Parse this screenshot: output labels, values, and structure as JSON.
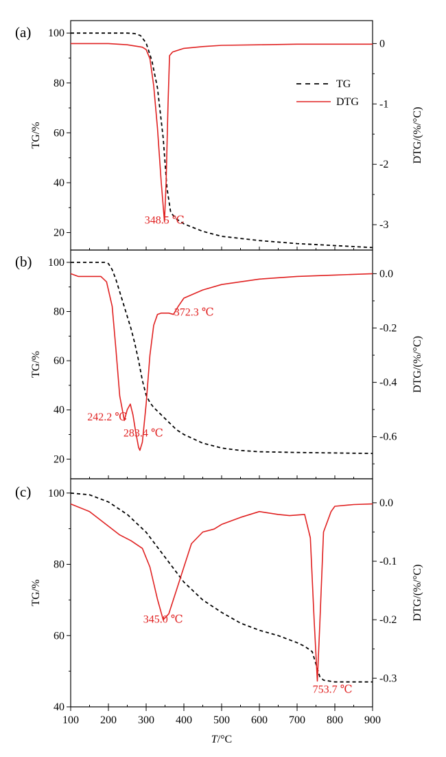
{
  "chart_data": [
    {
      "type": "line",
      "panel": "(a)",
      "ylabel": "TG/%",
      "y2label": "DTG/(%/°C)",
      "xlim": [
        100,
        900
      ],
      "ylim": [
        13,
        105
      ],
      "y2lim": [
        -3.42,
        0.38
      ],
      "yticks": [
        20,
        40,
        60,
        80,
        100
      ],
      "y2ticks": [
        -3,
        -2,
        -1,
        0
      ],
      "y2ticklabels": [
        "-3",
        "-2",
        "-1",
        "0"
      ],
      "legend": {
        "position": "right",
        "entries": [
          {
            "name": "TG",
            "style": "dashed",
            "color": "#000000"
          },
          {
            "name": "DTG",
            "style": "solid",
            "color": "#e02020"
          }
        ]
      },
      "annotations": [
        {
          "text": "348.5 ℃",
          "x": 348.5,
          "y": -2.98
        }
      ],
      "series": [
        {
          "name": "TG",
          "axis": "left",
          "style": "dashed",
          "color": "#000000",
          "x": [
            100,
            200,
            250,
            270,
            285,
            300,
            315,
            330,
            345,
            355,
            365,
            380,
            400,
            450,
            500,
            600,
            700,
            800,
            900
          ],
          "y": [
            100,
            100,
            100,
            99.8,
            99,
            96,
            89,
            78,
            58,
            38,
            28,
            25.5,
            23.5,
            20.5,
            18.5,
            16.8,
            15.6,
            14.8,
            14
          ]
        },
        {
          "name": "DTG",
          "axis": "right",
          "style": "solid",
          "color": "#e02020",
          "x": [
            100,
            200,
            250,
            290,
            300,
            310,
            320,
            330,
            340,
            348.5,
            353,
            358,
            362,
            370,
            400,
            450,
            500,
            600,
            700,
            800,
            900
          ],
          "y": [
            0.0,
            0.0,
            -0.02,
            -0.06,
            -0.1,
            -0.25,
            -0.7,
            -1.4,
            -2.3,
            -2.95,
            -2.3,
            -1.0,
            -0.2,
            -0.14,
            -0.08,
            -0.05,
            -0.03,
            -0.02,
            -0.01,
            -0.01,
            -0.01
          ]
        }
      ]
    },
    {
      "type": "line",
      "panel": "(b)",
      "ylabel": "TG/%",
      "y2label": "DTG/(%/°C)",
      "xlim": [
        100,
        900
      ],
      "ylim": [
        12,
        105
      ],
      "y2lim": [
        -0.755,
        0.087
      ],
      "yticks": [
        20,
        40,
        60,
        80,
        100
      ],
      "y2ticks": [
        -0.6,
        -0.4,
        -0.2,
        0.0
      ],
      "y2ticklabels": [
        "-0.6",
        "-0.4",
        "-0.2",
        "0.0"
      ],
      "annotations": [
        {
          "text": "372.3 ℃",
          "x": 372.3,
          "y": -0.155
        },
        {
          "text": "242.2 ℃",
          "x": 242.2,
          "y": -0.54
        },
        {
          "text": "283.4 ℃",
          "x": 283.4,
          "y": -0.6
        }
      ],
      "series": [
        {
          "name": "TG",
          "axis": "left",
          "style": "dashed",
          "color": "#000000",
          "x": [
            100,
            150,
            190,
            200,
            210,
            220,
            230,
            240,
            250,
            260,
            270,
            280,
            290,
            300,
            310,
            320,
            340,
            360,
            380,
            400,
            450,
            500,
            550,
            600,
            700,
            800,
            900
          ],
          "y": [
            100,
            100,
            100,
            99.5,
            97,
            93,
            88,
            83,
            78,
            73,
            67,
            60,
            52,
            46,
            43,
            41,
            38,
            35,
            32,
            30,
            26.5,
            24.5,
            23.5,
            23,
            22.7,
            22.5,
            22.3
          ]
        },
        {
          "name": "DTG",
          "axis": "right",
          "style": "solid",
          "color": "#e02020",
          "x": [
            100,
            120,
            180,
            195,
            210,
            220,
            230,
            242.2,
            250,
            258,
            265,
            272,
            280,
            283.4,
            290,
            300,
            310,
            320,
            330,
            340,
            360,
            372.3,
            385,
            400,
            450,
            500,
            600,
            700,
            800,
            900
          ],
          "y": [
            -0.0,
            -0.01,
            -0.01,
            -0.03,
            -0.12,
            -0.28,
            -0.45,
            -0.54,
            -0.5,
            -0.48,
            -0.52,
            -0.58,
            -0.64,
            -0.65,
            -0.62,
            -0.48,
            -0.3,
            -0.19,
            -0.15,
            -0.145,
            -0.145,
            -0.15,
            -0.12,
            -0.09,
            -0.06,
            -0.04,
            -0.02,
            -0.01,
            -0.005,
            -0.0
          ]
        }
      ]
    },
    {
      "type": "line",
      "panel": "(c)",
      "ylabel": "TG/%",
      "y2label": "DTG/(%/°C)",
      "xlabel": "T/°C",
      "xlim": [
        100,
        900
      ],
      "ylim": [
        40,
        104
      ],
      "y2lim": [
        -0.349,
        0.041
      ],
      "yticks": [
        40,
        60,
        80,
        100
      ],
      "y2ticks": [
        -0.3,
        -0.2,
        -0.1,
        0.0
      ],
      "y2ticklabels": [
        "-0.3",
        "-0.2",
        "-0.1",
        "0.0"
      ],
      "xticks": [
        100,
        200,
        300,
        400,
        500,
        600,
        700,
        800,
        900
      ],
      "annotations": [
        {
          "text": "345.0 ℃",
          "x": 345.0,
          "y": -0.205
        },
        {
          "text": "753.7 ℃",
          "x": 753.7,
          "y": -0.325
        }
      ],
      "series": [
        {
          "name": "TG",
          "axis": "left",
          "style": "dashed",
          "color": "#000000",
          "x": [
            100,
            150,
            200,
            250,
            300,
            350,
            400,
            450,
            500,
            550,
            600,
            650,
            700,
            720,
            740,
            750,
            760,
            770,
            800,
            850,
            900
          ],
          "y": [
            100,
            99.5,
            97.5,
            94,
            89,
            82,
            75,
            70,
            66.5,
            63.5,
            61.5,
            60,
            58,
            57,
            55.5,
            52,
            48.5,
            47.5,
            47,
            47,
            47
          ]
        },
        {
          "name": "DTG",
          "axis": "right",
          "style": "solid",
          "color": "#e02020",
          "x": [
            100,
            150,
            200,
            230,
            260,
            290,
            310,
            330,
            345,
            360,
            380,
            400,
            420,
            450,
            480,
            500,
            550,
            600,
            650,
            680,
            720,
            735,
            745,
            753.7,
            760,
            770,
            790,
            800,
            850,
            900
          ],
          "y": [
            -0.002,
            -0.015,
            -0.04,
            -0.055,
            -0.065,
            -0.078,
            -0.11,
            -0.165,
            -0.2,
            -0.19,
            -0.15,
            -0.11,
            -0.07,
            -0.05,
            -0.045,
            -0.037,
            -0.025,
            -0.015,
            -0.02,
            -0.022,
            -0.02,
            -0.06,
            -0.2,
            -0.305,
            -0.21,
            -0.05,
            -0.015,
            -0.006,
            -0.003,
            -0.002
          ]
        }
      ]
    }
  ]
}
